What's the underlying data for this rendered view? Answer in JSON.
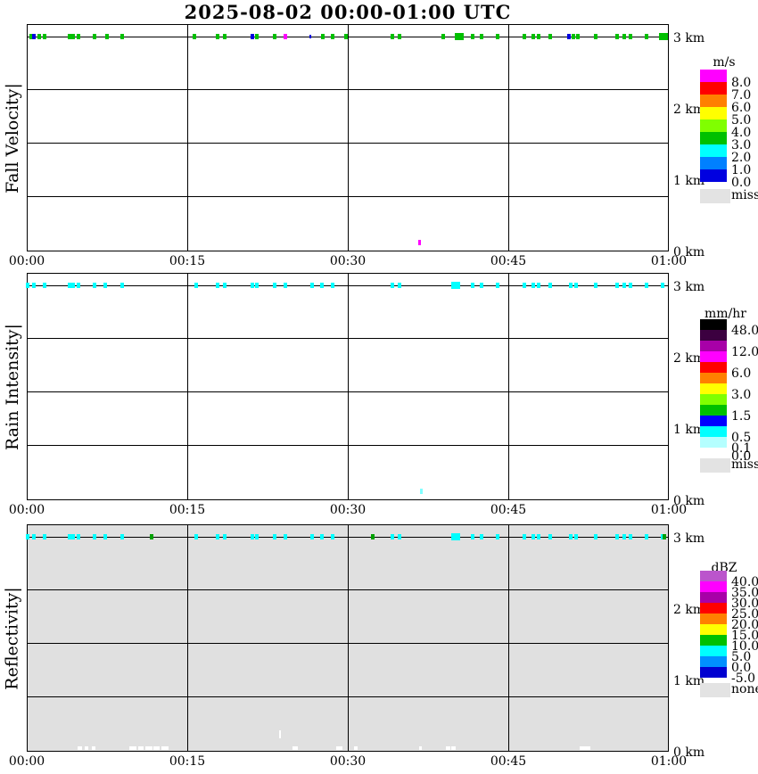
{
  "title": "2025-08-02  00:00-01:00 UTC",
  "time_axis": {
    "tick_labels": [
      "00:00",
      "00:15",
      "00:30",
      "00:45",
      "01:00"
    ],
    "tick_minutes": [
      0,
      15,
      30,
      45,
      60
    ],
    "range_minutes": [
      0,
      60
    ]
  },
  "height_axis": {
    "tick_labels": [
      "3 km",
      "2 km",
      "1 km",
      "0 km"
    ],
    "tick_km": [
      3,
      2,
      1,
      0
    ],
    "range_km": [
      0,
      3.2
    ]
  },
  "chart_data": [
    {
      "type": "heatmap",
      "name": "Fall Velocity",
      "ylabel_text": "Fall Velocity|",
      "background": "#FFFFFF",
      "legend": {
        "title": "m/s",
        "band_colors": [
          "#FF00FF",
          "#FF0000",
          "#FF8000",
          "#FFFF00",
          "#80FF00",
          "#00C000",
          "#00FFFF",
          "#0080FF",
          "#0000E0"
        ],
        "labels": [
          "8.0",
          "7.0",
          "6.0",
          "5.0",
          "4.0",
          "3.0",
          "2.0",
          "1.0",
          "0.0"
        ],
        "miss_color": "#E3E3E3",
        "miss_label": "miss"
      },
      "marks": {
        "line_height_km": 3.0,
        "default_color": "#00C000",
        "t": [
          0.4,
          1.2,
          1.7,
          4.0,
          4.3,
          4.8,
          6.3,
          7.5,
          8.9,
          15.7,
          17.8,
          18.5,
          21.5,
          23.2,
          27.7,
          28.6,
          29.8,
          34.2,
          34.8,
          38.9,
          41.7,
          42.5,
          44.0,
          46.5,
          47.3,
          47.8,
          48.9,
          51.1,
          51.5,
          53.2,
          55.2,
          55.8,
          56.4,
          57.9
        ],
        "wide_t": [
          40.4,
          59.5
        ],
        "alt": [
          {
            "t": 0.7,
            "color": "#0000E0"
          },
          {
            "t": 21.1,
            "color": "#0000E0"
          },
          {
            "t": 24.2,
            "color": "#FF00FF"
          },
          {
            "t": 26.5,
            "color": "#0000E0",
            "small": true
          },
          {
            "t": 50.7,
            "color": "#0000E0"
          }
        ],
        "extra": [
          {
            "t": 36.7,
            "h_km": 0.1,
            "color": "#FF00FF"
          }
        ]
      }
    },
    {
      "type": "heatmap",
      "name": "Rain Intensity",
      "ylabel_text": "Rain Intensity|",
      "background": "#FFFFFF",
      "legend": {
        "title": "mm/hr",
        "band_colors": [
          "#000000",
          "#3C0040",
          "#A800A8",
          "#FF00FF",
          "#FF0000",
          "#FF8000",
          "#FFFF00",
          "#80FF00",
          "#00C000",
          "#0000FF",
          "#00FFFF",
          "#B4FFFF"
        ],
        "labels": [
          "48.0",
          "12.0",
          "6.0",
          "3.0",
          "1.5",
          "0.5",
          "0.1",
          "0.0"
        ],
        "miss_color": "#E3E3E3",
        "miss_label": "miss"
      },
      "marks": {
        "line_height_km": 3.0,
        "default_color": "#00FFFF",
        "t": [
          0.1,
          0.7,
          1.7,
          4.0,
          4.3,
          4.8,
          6.3,
          7.3,
          8.9,
          15.8,
          17.8,
          18.5,
          21.1,
          21.5,
          23.2,
          24.2,
          26.7,
          27.6,
          28.6,
          34.2,
          34.8,
          41.7,
          42.5,
          44.0,
          46.5,
          47.3,
          47.8,
          48.9,
          50.8,
          51.3,
          53.2,
          55.2,
          55.8,
          56.4,
          57.9,
          59.4
        ],
        "wide_t": [
          40.1
        ],
        "alt": [],
        "extra": [
          {
            "t": 36.8,
            "h_km": 0.1,
            "color": "#80FFFF"
          }
        ]
      }
    },
    {
      "type": "heatmap",
      "name": "Reflectivity",
      "ylabel_text": "Reflectivity|",
      "background": "#E0E0E0",
      "legend": {
        "title": "dBZ",
        "band_colors": [
          "#BB55CC",
          "#FF00FF",
          "#A800A8",
          "#FF0000",
          "#FF8000",
          "#FFFF00",
          "#00C000",
          "#00FFFF",
          "#0090FF",
          "#0000D0"
        ],
        "labels": [
          "40.0",
          "35.0",
          "30.0",
          "25.0",
          "20.0",
          "15.0",
          "10.0",
          "5.0",
          "0.0",
          "-5.0"
        ],
        "miss_color": "#E3E3E3",
        "miss_label": "none"
      },
      "marks": {
        "line_height_km": 3.0,
        "default_color": "#00FFFF",
        "t": [
          0.1,
          0.7,
          1.7,
          4.0,
          4.3,
          4.8,
          6.3,
          7.3,
          8.9,
          15.8,
          17.8,
          18.5,
          21.1,
          21.5,
          23.2,
          24.2,
          26.7,
          27.6,
          28.6,
          34.2,
          34.8,
          41.7,
          42.5,
          44.0,
          46.5,
          47.3,
          47.8,
          48.9,
          50.8,
          51.3,
          53.2,
          55.2,
          55.8,
          56.4,
          57.9,
          59.4
        ],
        "wide_t": [
          40.1
        ],
        "alt": [
          {
            "t": 11.7,
            "color": "#00A000"
          },
          {
            "t": 32.3,
            "color": "#00A000"
          },
          {
            "t": 59.6,
            "color": "#00A000"
          }
        ],
        "extra": [],
        "white_segments": [
          {
            "t": 4.75,
            "dur": 0.4
          },
          {
            "t": 5.4,
            "dur": 0.35
          },
          {
            "t": 6.1,
            "dur": 0.35
          },
          {
            "t": 9.6,
            "dur": 0.65
          },
          {
            "t": 10.4,
            "dur": 0.5
          },
          {
            "t": 11.1,
            "dur": 0.65
          },
          {
            "t": 11.8,
            "dur": 0.6
          },
          {
            "t": 12.6,
            "dur": 0.65
          },
          {
            "t": 24.8,
            "dur": 0.5
          },
          {
            "t": 28.9,
            "dur": 0.6
          },
          {
            "t": 30.6,
            "dur": 0.35
          },
          {
            "t": 36.7,
            "dur": 0.25
          },
          {
            "t": 39.2,
            "dur": 0.35
          },
          {
            "t": 39.7,
            "dur": 0.35
          },
          {
            "t": 51.7,
            "dur": 0.65
          },
          {
            "t": 52.3,
            "dur": 0.4
          }
        ],
        "white_tick": {
          "t": 23.6,
          "h_km": 0.25
        }
      }
    }
  ]
}
